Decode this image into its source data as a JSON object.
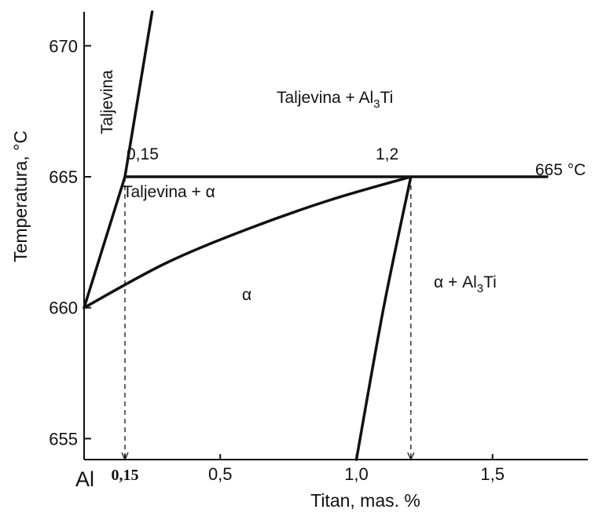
{
  "chart_data": {
    "type": "line",
    "xlabel": "Titan, mas. %",
    "ylabel": "Temperatura, °C",
    "xlim": [
      0,
      1.85
    ],
    "ylim": [
      654.2,
      671.3
    ],
    "x_origin_label": "Al",
    "x_ticks": [
      {
        "value": 0.15,
        "label": "0,15",
        "bold": true
      },
      {
        "value": 0.5,
        "label": "0,5",
        "bold": false
      },
      {
        "value": 1.0,
        "label": "1,0",
        "bold": false
      },
      {
        "value": 1.5,
        "label": "1,5",
        "bold": false
      }
    ],
    "y_ticks": [
      {
        "value": 655,
        "label": "655"
      },
      {
        "value": 660,
        "label": "660"
      },
      {
        "value": 665,
        "label": "665"
      },
      {
        "value": 670,
        "label": "670"
      }
    ],
    "series": [
      {
        "key": "liquidus-upper",
        "points": [
          [
            0.15,
            665
          ],
          [
            0.25,
            671.3
          ]
        ]
      },
      {
        "key": "liquidus-lower",
        "points": [
          [
            0.0,
            660
          ],
          [
            0.15,
            665
          ]
        ]
      },
      {
        "key": "solidus",
        "points": [
          [
            0.0,
            660
          ],
          [
            0.3,
            661.7
          ],
          [
            0.6,
            663.0
          ],
          [
            0.9,
            664.1
          ],
          [
            1.2,
            665
          ]
        ]
      },
      {
        "key": "solvus",
        "points": [
          [
            1.2,
            665
          ],
          [
            1.1,
            660
          ],
          [
            1.0,
            654.2
          ]
        ]
      },
      {
        "key": "peritectic-line",
        "points": [
          [
            0.15,
            665
          ],
          [
            1.7,
            665
          ]
        ]
      }
    ],
    "dashed_lines": [
      {
        "x": 0.15,
        "y_top": 665
      },
      {
        "x": 1.2,
        "y_top": 665
      }
    ],
    "point_labels": {
      "p015": {
        "text": "0,15",
        "x": 0.15,
        "y": 665
      },
      "p12": {
        "text": "1,2",
        "x": 1.2,
        "y": 665
      },
      "temp": {
        "text": "665 °C",
        "x": 1.7,
        "y": 665
      }
    },
    "regions": {
      "liquid": "Taljevina",
      "liquid_al3ti": {
        "main": "Taljevina + Al",
        "sub": "3",
        "tail": "Ti"
      },
      "liquid_alpha": "Taljevina + α",
      "alpha": "α",
      "alpha_al3ti": {
        "main": "α + Al",
        "sub": "3",
        "tail": "Ti"
      }
    }
  }
}
